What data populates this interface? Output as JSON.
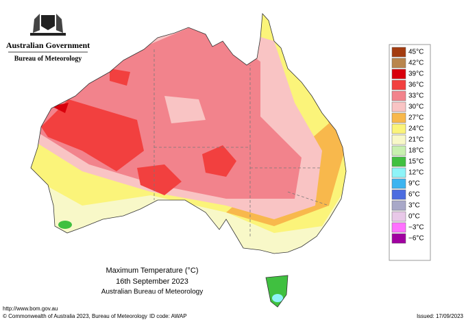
{
  "header": {
    "government": "Australian Government",
    "bureau": "Bureau of Meteorology"
  },
  "legend": [
    {
      "label": "45°C",
      "color": "#a33c10"
    },
    {
      "label": "42°C",
      "color": "#b9864e"
    },
    {
      "label": "39°C",
      "color": "#d8000c"
    },
    {
      "label": "36°C",
      "color": "#f2403f"
    },
    {
      "label": "33°C",
      "color": "#f2838c"
    },
    {
      "label": "30°C",
      "color": "#f9c4c4"
    },
    {
      "label": "27°C",
      "color": "#f8b84c"
    },
    {
      "label": "24°C",
      "color": "#fbf47a"
    },
    {
      "label": "21°C",
      "color": "#f8f8c8"
    },
    {
      "label": "18°C",
      "color": "#c8f0b0"
    },
    {
      "label": "15°C",
      "color": "#40c040"
    },
    {
      "label": "12°C",
      "color": "#8ef4f8"
    },
    {
      "label": "9°C",
      "color": "#3cb4f0"
    },
    {
      "label": "6°C",
      "color": "#4c6ce0"
    },
    {
      "label": "3°C",
      "color": "#a8a8c8"
    },
    {
      "label": "0°C",
      "color": "#e8c8e8"
    },
    {
      "label": "−3°C",
      "color": "#ff70ff"
    },
    {
      "label": "−6°C",
      "color": "#a000a0"
    }
  ],
  "caption": [
    "Maximum Temperature (°C)",
    "16th September 2023",
    "Australian Bureau of Meteorology"
  ],
  "footer": {
    "url": "http://www.bom.gov.au",
    "copyright": "© Commonwealth of Australia 2023, Bureau of Meteorology",
    "id_code": "ID code: AWAP",
    "issued": "Issued: 17/09/2023"
  }
}
